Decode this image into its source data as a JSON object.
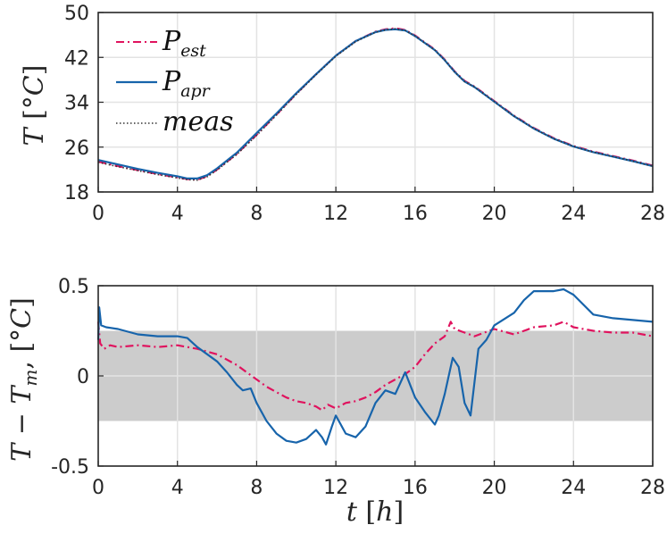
{
  "chart_data": [
    {
      "type": "line",
      "title": "",
      "xlabel": "",
      "ylabel": "T [°C]",
      "xlim": [
        0,
        28
      ],
      "ylim": [
        18,
        50
      ],
      "xticks": [
        0,
        4,
        8,
        12,
        16,
        20,
        24,
        28
      ],
      "yticks": [
        18,
        26,
        34,
        42,
        50
      ],
      "grid": true,
      "legend": {
        "position": "top-left",
        "entries": [
          {
            "main": "P",
            "sub": "est"
          },
          {
            "main": "P",
            "sub": "apr"
          },
          {
            "main": "meas",
            "sub": ""
          }
        ]
      },
      "series": [
        {
          "name": "P_est",
          "color": "#e0135e",
          "dash": "dashdot",
          "x": [
            0,
            1,
            2,
            3,
            4,
            4.5,
            5,
            5.5,
            6,
            7,
            8,
            9,
            10,
            11,
            12,
            13,
            14,
            14.5,
            15,
            15.5,
            16,
            17,
            17.5,
            18,
            18.5,
            19,
            20,
            21,
            22,
            23,
            24,
            25,
            26,
            27,
            28
          ],
          "y": [
            23.4,
            22.6,
            21.9,
            21.2,
            20.6,
            20.3,
            20.2,
            20.8,
            22.0,
            24.8,
            28.2,
            31.8,
            35.5,
            39.0,
            42.3,
            44.9,
            46.6,
            47.0,
            47.2,
            46.9,
            45.9,
            43.4,
            41.6,
            39.5,
            37.8,
            36.8,
            34.2,
            31.6,
            29.4,
            27.6,
            26.2,
            25.2,
            24.4,
            23.6,
            22.7
          ]
        },
        {
          "name": "P_apr",
          "color": "#1764ab",
          "dash": "solid",
          "x": [
            0,
            1,
            2,
            3,
            4,
            4.5,
            5,
            5.5,
            6,
            7,
            8,
            9,
            10,
            11,
            12,
            13,
            14,
            14.5,
            15,
            15.5,
            16,
            17,
            17.5,
            18,
            18.5,
            19,
            20,
            21,
            22,
            23,
            24,
            25,
            26,
            27,
            28
          ],
          "y": [
            23.7,
            22.9,
            22.1,
            21.4,
            20.8,
            20.4,
            20.4,
            21.0,
            22.2,
            25.0,
            28.5,
            32.0,
            35.6,
            39.0,
            42.3,
            44.9,
            46.5,
            46.9,
            47.0,
            46.8,
            45.8,
            43.3,
            41.5,
            39.4,
            37.7,
            36.7,
            34.1,
            31.5,
            29.3,
            27.5,
            26.1,
            25.1,
            24.3,
            23.5,
            22.6
          ]
        },
        {
          "name": "meas",
          "color": "#333333",
          "dash": "dotted",
          "x": [
            0,
            1,
            2,
            3,
            4,
            4.5,
            5,
            5.5,
            6,
            7,
            8,
            9,
            10,
            11,
            12,
            13,
            14,
            14.5,
            15,
            15.5,
            16,
            17,
            17.5,
            18,
            18.5,
            19,
            20,
            21,
            22,
            23,
            24,
            25,
            26,
            27,
            28
          ],
          "y": [
            23.3,
            22.5,
            21.8,
            21.1,
            20.5,
            20.2,
            20.1,
            20.7,
            21.9,
            24.7,
            28.1,
            31.7,
            35.4,
            38.9,
            42.2,
            44.8,
            46.5,
            46.9,
            47.1,
            46.8,
            45.8,
            43.3,
            41.5,
            39.4,
            37.7,
            36.7,
            34.1,
            31.5,
            29.3,
            27.5,
            26.1,
            25.1,
            24.3,
            23.5,
            22.6
          ]
        }
      ]
    },
    {
      "type": "line",
      "title": "",
      "xlabel": "t [h]",
      "ylabel": "T − T_m, [°C]",
      "xlim": [
        0,
        28
      ],
      "ylim": [
        -0.5,
        0.5
      ],
      "xticks": [
        0,
        4,
        8,
        12,
        16,
        20,
        24,
        28
      ],
      "yticks": [
        -0.5,
        0,
        0.5
      ],
      "ytick_labels": [
        "-0.5",
        "0",
        "0.5"
      ],
      "grid": true,
      "band": {
        "from": -0.25,
        "to": 0.25,
        "color": "#cccccc"
      },
      "series": [
        {
          "name": "P_est",
          "color": "#e0135e",
          "dash": "dashdot",
          "x": [
            0,
            0.1,
            0.3,
            0.6,
            1,
            2,
            3,
            4,
            5,
            6,
            7,
            7.5,
            8,
            8.5,
            9,
            9.5,
            10,
            10.5,
            11,
            11.3,
            11.6,
            12,
            12.5,
            13,
            13.5,
            14,
            14.5,
            15,
            15.5,
            16,
            16.5,
            17,
            17.5,
            17.8,
            18,
            18.5,
            19,
            19.5,
            20,
            21,
            22,
            23,
            23.5,
            24,
            25,
            26,
            27,
            28
          ],
          "y": [
            0.3,
            0.18,
            0.15,
            0.17,
            0.16,
            0.17,
            0.16,
            0.17,
            0.15,
            0.12,
            0.06,
            0.02,
            -0.02,
            -0.06,
            -0.09,
            -0.12,
            -0.14,
            -0.15,
            -0.17,
            -0.19,
            -0.16,
            -0.18,
            -0.15,
            -0.14,
            -0.12,
            -0.09,
            -0.05,
            -0.02,
            0.01,
            0.05,
            0.12,
            0.18,
            0.22,
            0.3,
            0.26,
            0.24,
            0.22,
            0.24,
            0.26,
            0.23,
            0.27,
            0.28,
            0.3,
            0.27,
            0.25,
            0.24,
            0.24,
            0.22
          ]
        },
        {
          "name": "P_apr",
          "color": "#1764ab",
          "dash": "solid",
          "x": [
            0,
            0.05,
            0.15,
            0.4,
            1,
            2,
            3,
            4,
            4.5,
            5,
            6,
            6.5,
            7,
            7.3,
            7.7,
            8,
            8.5,
            9,
            9.5,
            10,
            10.5,
            11,
            11.3,
            11.5,
            11.8,
            12,
            12.5,
            13,
            13.5,
            14,
            14.5,
            15,
            15.5,
            16,
            16.5,
            17,
            17.2,
            17.5,
            17.9,
            18.2,
            18.5,
            18.8,
            19.2,
            19.6,
            20,
            21,
            21.5,
            22,
            23,
            23.5,
            24,
            25,
            26,
            27,
            28
          ],
          "y": [
            0.2,
            0.38,
            0.28,
            0.27,
            0.26,
            0.23,
            0.22,
            0.22,
            0.21,
            0.16,
            0.08,
            0.02,
            -0.05,
            -0.08,
            -0.07,
            -0.15,
            -0.25,
            -0.32,
            -0.36,
            -0.37,
            -0.35,
            -0.3,
            -0.34,
            -0.38,
            -0.28,
            -0.22,
            -0.32,
            -0.34,
            -0.28,
            -0.15,
            -0.08,
            -0.1,
            0.02,
            -0.12,
            -0.2,
            -0.27,
            -0.22,
            -0.1,
            0.1,
            0.05,
            -0.15,
            -0.22,
            0.15,
            0.2,
            0.28,
            0.35,
            0.42,
            0.47,
            0.47,
            0.48,
            0.45,
            0.34,
            0.32,
            0.31,
            0.3
          ]
        }
      ]
    }
  ]
}
